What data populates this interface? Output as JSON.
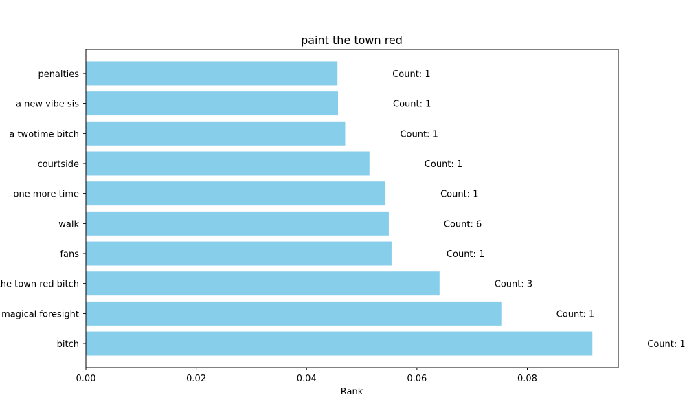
{
  "chart_data": {
    "type": "bar",
    "orientation": "horizontal",
    "title": "paint the town red",
    "xlabel": "Rank",
    "ylabel": "",
    "xlim": [
      0,
      0.0965
    ],
    "xticks": [
      0.0,
      0.02,
      0.04,
      0.06,
      0.08
    ],
    "xtick_labels": [
      "0.00",
      "0.02",
      "0.04",
      "0.06",
      "0.08"
    ],
    "grid": false,
    "bar_color": "#87CEEB",
    "categories": [
      "penalties",
      "a new vibe sis",
      "a twotime bitch",
      "courtside",
      "one more time",
      "walk",
      "fans",
      "paint the town red bitch",
      "magical foresight",
      "bitch"
    ],
    "values": [
      0.0456,
      0.0457,
      0.047,
      0.0514,
      0.0543,
      0.0549,
      0.0554,
      0.0641,
      0.0753,
      0.0918
    ],
    "annotations": [
      "Count: 1",
      "Count: 1",
      "Count: 1",
      "Count: 1",
      "Count: 1",
      "Count: 6",
      "Count: 1",
      "Count: 3",
      "Count: 1",
      "Count: 1"
    ]
  }
}
